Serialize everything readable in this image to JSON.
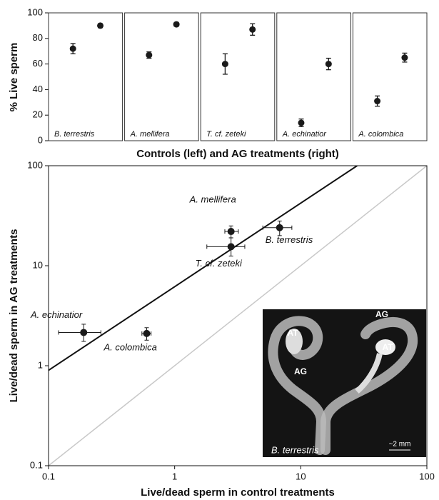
{
  "chart_data": [
    {
      "type": "dot",
      "ylabel": "% Live sperm",
      "xlabel": "Controls (left) and AG treatments (right)",
      "ylim": [
        0,
        100
      ],
      "yticks": [
        0,
        20,
        40,
        60,
        80,
        100
      ],
      "color": "#1a1a1a",
      "panels": [
        {
          "label": "B. terrestris",
          "values": [
            72,
            90
          ],
          "errors": [
            4,
            1.5
          ]
        },
        {
          "label": "A. mellifera",
          "values": [
            67,
            91
          ],
          "errors": [
            2.5,
            1.5
          ]
        },
        {
          "label": "T. cf. zeteki",
          "values": [
            60,
            87
          ],
          "errors": [
            8,
            4.5
          ]
        },
        {
          "label": "A. echinatior",
          "values": [
            14,
            60
          ],
          "errors": [
            3,
            4.5
          ]
        },
        {
          "label": "A. colombica",
          "values": [
            31,
            65
          ],
          "errors": [
            4,
            3.5
          ]
        }
      ]
    },
    {
      "type": "scatter",
      "xscale": "log",
      "yscale": "log",
      "xlabel": "Live/dead sperm in control treatments",
      "ylabel": "Live/dead sperm in AG treatments",
      "xlim": [
        0.1,
        100
      ],
      "ylim": [
        0.1,
        100
      ],
      "xticks": [
        0.1,
        1,
        10,
        100
      ],
      "yticks": [
        0.1,
        1,
        10,
        100
      ],
      "color": "#1a1a1a",
      "points": [
        {
          "name": "A. mellifera",
          "x": 2.8,
          "y": 22,
          "x_low": 2.5,
          "x_high": 3.2,
          "y_low": 19,
          "y_high": 25
        },
        {
          "name": "B. terrestris",
          "x": 6.8,
          "y": 24,
          "x_low": 5,
          "x_high": 8.5,
          "y_low": 20,
          "y_high": 28
        },
        {
          "name": "T. cf. zeteki",
          "x": 2.8,
          "y": 15.5,
          "x_low": 1.8,
          "x_high": 3.6,
          "y_low": 12.5,
          "y_high": 19
        },
        {
          "name": "A. echinatior",
          "x": 0.19,
          "y": 2.15,
          "x_low": 0.12,
          "x_high": 0.26,
          "y_low": 1.75,
          "y_high": 2.6
        },
        {
          "name": "A. colombica",
          "x": 0.6,
          "y": 2.1,
          "x_low": 0.55,
          "x_high": 0.65,
          "y_low": 1.8,
          "y_high": 2.4
        }
      ],
      "fit_line": {
        "x": [
          0.1,
          28
        ],
        "y": [
          0.9,
          100
        ],
        "color": "#111111"
      },
      "reference_line": {
        "x": [
          0.1,
          100
        ],
        "y": [
          0.1,
          100
        ],
        "color": "#c8c8c8"
      },
      "inset": {
        "labels": [
          "AG",
          "AT",
          "AT",
          "AG"
        ],
        "species": "B. terrestris",
        "scale": "~2 mm"
      }
    }
  ]
}
